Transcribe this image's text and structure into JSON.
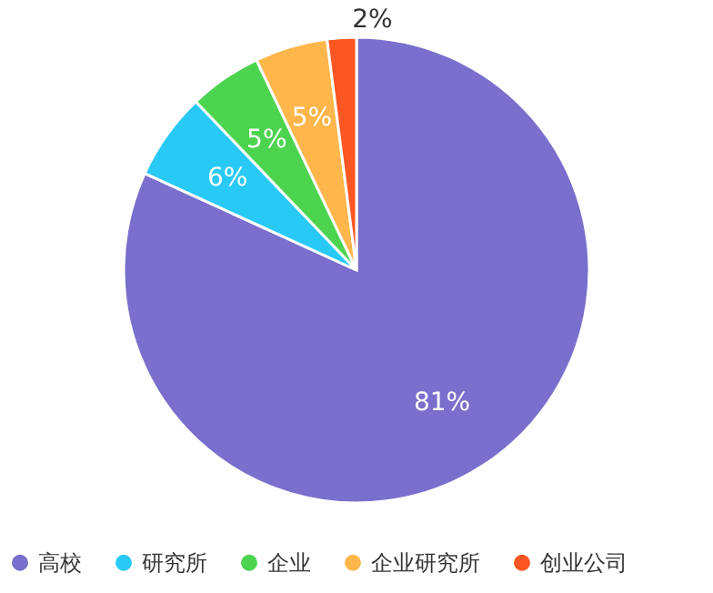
{
  "chart_data": {
    "type": "pie",
    "categories": [
      "高校",
      "研究所",
      "企业",
      "企业研究所",
      "创业公司"
    ],
    "values": [
      81,
      6,
      5,
      5,
      2
    ],
    "colors": [
      "#7a6fcc",
      "#29c9f6",
      "#4cd44f",
      "#ffb64a",
      "#fc5622"
    ],
    "value_labels": [
      "81%",
      "6%",
      "5%",
      "5%",
      "2%"
    ],
    "legend": "bottom"
  }
}
